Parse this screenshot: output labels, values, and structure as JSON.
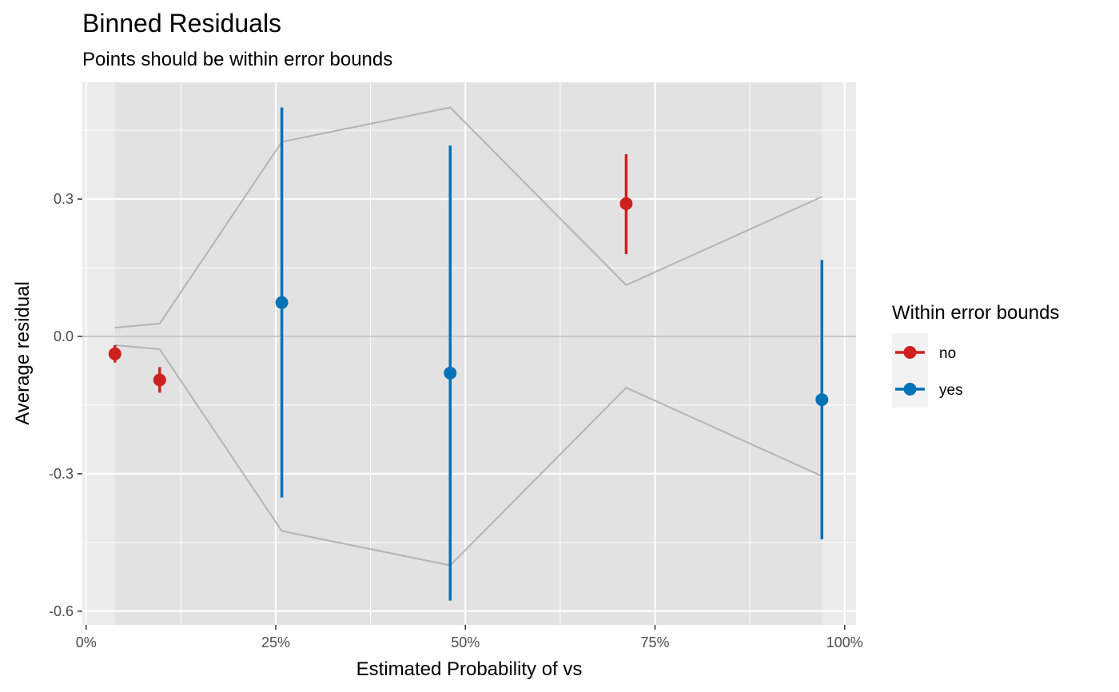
{
  "chart_data": {
    "type": "scatter",
    "title": "Binned Residuals",
    "subtitle": "Points should be within error bounds",
    "xlabel": "Estimated Probability of vs",
    "ylabel": "Average residual",
    "xlim": [
      -0.005,
      1.015
    ],
    "ylim": [
      -0.63,
      0.555
    ],
    "x_ticks": [
      {
        "value": 0,
        "label": "0%"
      },
      {
        "value": 0.25,
        "label": "25%"
      },
      {
        "value": 0.5,
        "label": "50%"
      },
      {
        "value": 0.75,
        "label": "75%"
      },
      {
        "value": 1,
        "label": "100%"
      }
    ],
    "y_ticks": [
      {
        "value": 0.3,
        "label": "0.3"
      },
      {
        "value": 0,
        "label": "0.0"
      },
      {
        "value": -0.3,
        "label": "-0.3"
      },
      {
        "value": -0.6,
        "label": "-0.6"
      }
    ],
    "grid": true,
    "background": "#ebebeb",
    "shaded_range": [
      0.038,
      0.97
    ],
    "legend": {
      "title": "Within error bounds",
      "position": "right",
      "entries": [
        {
          "label": "no",
          "color": "#cd201f"
        },
        {
          "label": "yes",
          "color": "#0072b5"
        }
      ]
    },
    "bounds": {
      "color": "#b3b3b3",
      "x": [
        0.038,
        0.097,
        0.258,
        0.48,
        0.712,
        0.97
      ],
      "upper": [
        0.019,
        0.028,
        0.425,
        0.5,
        0.112,
        0.305
      ],
      "lower": [
        -0.019,
        -0.028,
        -0.425,
        -0.5,
        -0.112,
        -0.305
      ]
    },
    "series": [
      {
        "name": "no",
        "color": "#cd201f",
        "points": [
          {
            "x": 0.038,
            "y": -0.038,
            "ymin": -0.057,
            "ymax": -0.019
          },
          {
            "x": 0.097,
            "y": -0.095,
            "ymin": -0.123,
            "ymax": -0.067
          },
          {
            "x": 0.712,
            "y": 0.29,
            "ymin": 0.18,
            "ymax": 0.398
          }
        ]
      },
      {
        "name": "yes",
        "color": "#0072b5",
        "points": [
          {
            "x": 0.258,
            "y": 0.074,
            "ymin": -0.352,
            "ymax": 0.5
          },
          {
            "x": 0.48,
            "y": -0.08,
            "ymin": -0.577,
            "ymax": 0.417
          },
          {
            "x": 0.97,
            "y": -0.138,
            "ymin": -0.443,
            "ymax": 0.167
          }
        ]
      }
    ]
  }
}
